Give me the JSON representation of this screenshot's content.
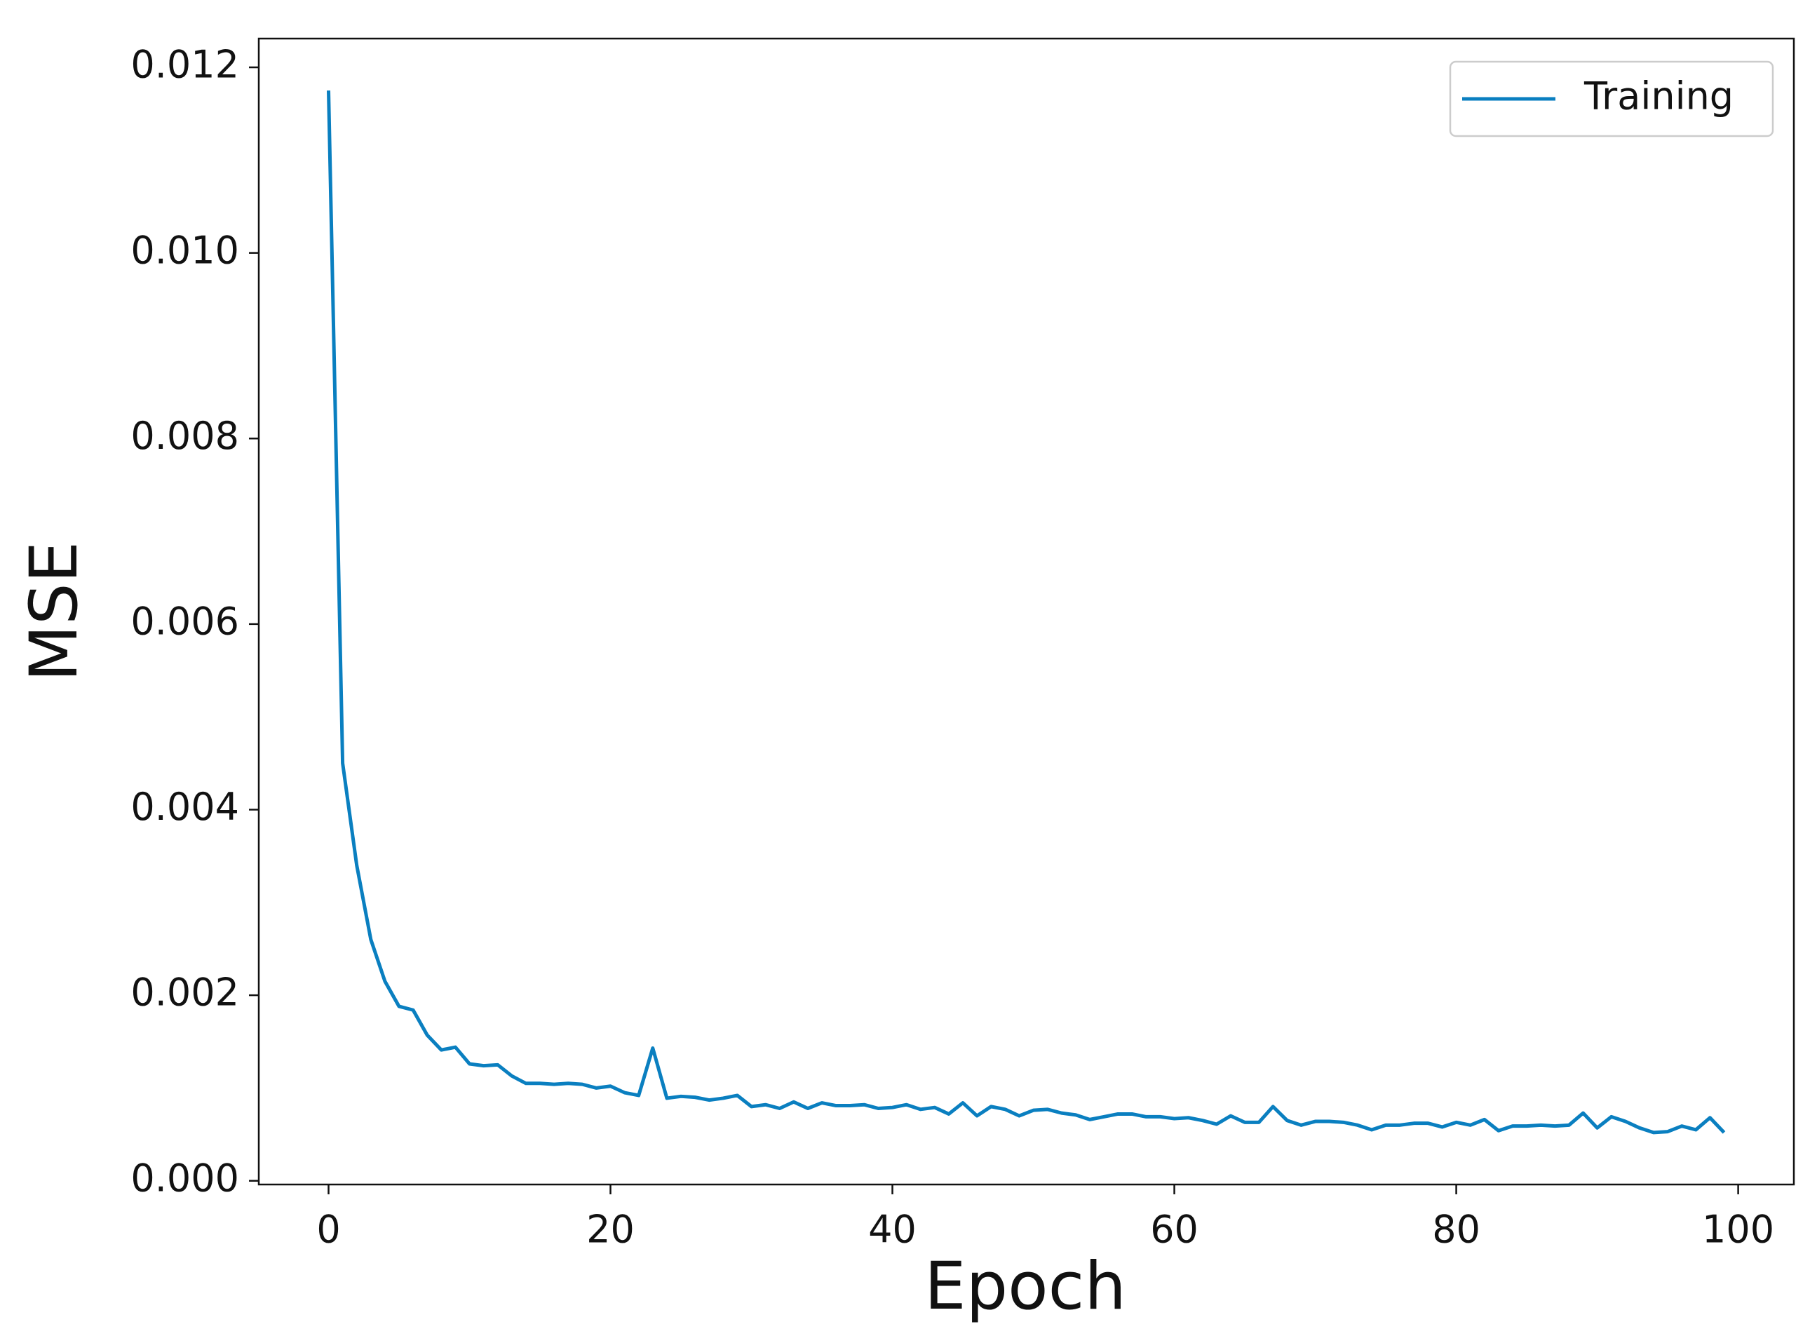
{
  "chart_data": {
    "type": "line",
    "x_label": "Epoch",
    "y_label": "MSE",
    "x": [
      0,
      1,
      2,
      3,
      4,
      5,
      6,
      7,
      8,
      9,
      10,
      11,
      12,
      13,
      14,
      15,
      16,
      17,
      18,
      19,
      20,
      21,
      22,
      23,
      24,
      25,
      26,
      27,
      28,
      29,
      30,
      31,
      32,
      33,
      34,
      35,
      36,
      37,
      38,
      39,
      40,
      41,
      42,
      43,
      44,
      45,
      46,
      47,
      48,
      49,
      50,
      51,
      52,
      53,
      54,
      55,
      56,
      57,
      58,
      59,
      60,
      61,
      62,
      63,
      64,
      65,
      66,
      67,
      68,
      69,
      70,
      71,
      72,
      73,
      74,
      75,
      76,
      77,
      78,
      79,
      80,
      81,
      82,
      83,
      84,
      85,
      86,
      87,
      88,
      89,
      90,
      91,
      92,
      93,
      94,
      95,
      96,
      97,
      98,
      99
    ],
    "series": [
      {
        "name": "Training",
        "color": "#0a7fc0",
        "values": [
          0.01175,
          0.0045,
          0.0034,
          0.0026,
          0.00215,
          0.00188,
          0.00184,
          0.00157,
          0.00141,
          0.00144,
          0.00126,
          0.00124,
          0.00125,
          0.00113,
          0.00105,
          0.00105,
          0.00104,
          0.00105,
          0.00104,
          0.001,
          0.00102,
          0.00095,
          0.00092,
          0.00143,
          0.00089,
          0.00091,
          0.0009,
          0.00087,
          0.00089,
          0.00092,
          0.0008,
          0.00082,
          0.00078,
          0.00085,
          0.00078,
          0.00084,
          0.00081,
          0.00081,
          0.00082,
          0.00078,
          0.00079,
          0.00082,
          0.00077,
          0.00079,
          0.00072,
          0.00084,
          0.0007,
          0.0008,
          0.00077,
          0.0007,
          0.00076,
          0.00077,
          0.00073,
          0.00071,
          0.00066,
          0.00069,
          0.00072,
          0.00072,
          0.00069,
          0.00069,
          0.00067,
          0.00068,
          0.00065,
          0.00061,
          0.0007,
          0.00063,
          0.00063,
          0.0008,
          0.00065,
          0.0006,
          0.00064,
          0.00064,
          0.00063,
          0.0006,
          0.00055,
          0.0006,
          0.0006,
          0.00062,
          0.00062,
          0.00058,
          0.00063,
          0.0006,
          0.00066,
          0.00054,
          0.00059,
          0.00059,
          0.0006,
          0.00059,
          0.0006,
          0.00073,
          0.00057,
          0.00069,
          0.00064,
          0.00057,
          0.00052,
          0.00053,
          0.00059,
          0.00055,
          0.00068,
          0.00052
        ]
      }
    ],
    "xlim": [
      -4.95,
      103.95
    ],
    "ylim": [
      -4e-05,
      0.01231
    ],
    "xticks": [
      0,
      20,
      40,
      60,
      80,
      100
    ],
    "yticks": [
      {
        "value": 0,
        "label": "0.000"
      },
      {
        "value": 0.002,
        "label": "0.002"
      },
      {
        "value": 0.004,
        "label": "0.004"
      },
      {
        "value": 0.006,
        "label": "0.006"
      },
      {
        "value": 0.008,
        "label": "0.008"
      },
      {
        "value": 0.01,
        "label": "0.010"
      },
      {
        "value": 0.012,
        "label": "0.012"
      }
    ],
    "legend": "upper right",
    "grid": false
  }
}
